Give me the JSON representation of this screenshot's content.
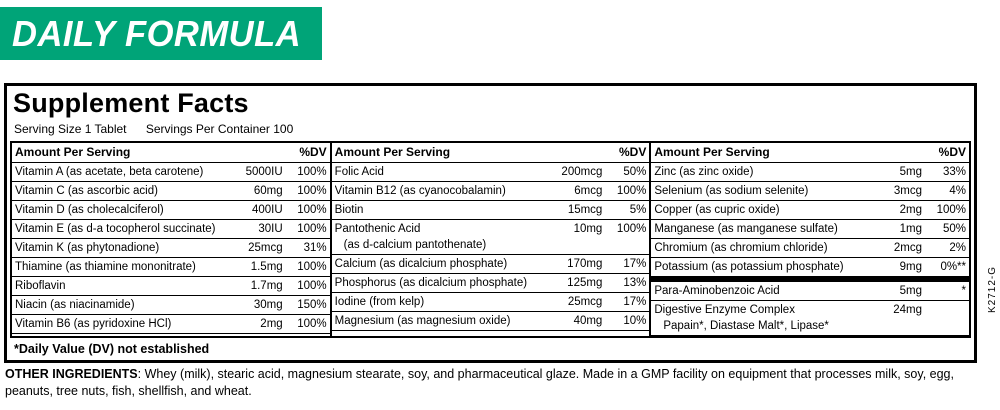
{
  "banner": {
    "title": "DAILY FORMULA",
    "color": "#00a478"
  },
  "panel": {
    "title": "Supplement Facts",
    "serving_size": "Serving Size 1 Tablet",
    "servings_per_container": "Servings Per Container 100",
    "footnote": "*Daily Value (DV) not established",
    "columns": [
      {
        "header_left": "Amount Per Serving",
        "header_right": "%DV",
        "rows": [
          {
            "name": "Vitamin A (as acetate, beta carotene)",
            "amount": "5000IU",
            "dv": "100%"
          },
          {
            "name": "Vitamin C (as ascorbic acid)",
            "amount": "60mg",
            "dv": "100%"
          },
          {
            "name": "Vitamin D (as cholecalciferol)",
            "amount": "400IU",
            "dv": "100%"
          },
          {
            "name": "Vitamin E (as d-a tocopherol succinate)",
            "amount": "30IU",
            "dv": "100%"
          },
          {
            "name": "Vitamin K (as phytonadione)",
            "amount": "25mcg",
            "dv": "31%"
          },
          {
            "name": "Thiamine (as thiamine mononitrate)",
            "amount": "1.5mg",
            "dv": "100%"
          },
          {
            "name": "Riboflavin",
            "amount": "1.7mg",
            "dv": "100%"
          },
          {
            "name": "Niacin (as niacinamide)",
            "amount": "30mg",
            "dv": "150%"
          },
          {
            "name": "Vitamin B6 (as pyridoxine HCl)",
            "amount": "2mg",
            "dv": "100%"
          }
        ]
      },
      {
        "header_left": "Amount Per Serving",
        "header_right": "%DV",
        "rows": [
          {
            "name": "Folic Acid",
            "amount": "200mcg",
            "dv": "50%"
          },
          {
            "name": "Vitamin B12 (as cyanocobalamin)",
            "amount": "6mcg",
            "dv": "100%"
          },
          {
            "name": "Biotin",
            "amount": "15mcg",
            "dv": "5%"
          },
          {
            "name": "Pantothenic Acid",
            "name2": "(as d-calcium pantothenate)",
            "amount": "10mg",
            "dv": "100%"
          },
          {
            "name": "Calcium (as dicalcium phosphate)",
            "amount": "170mg",
            "dv": "17%"
          },
          {
            "name": "Phosphorus (as dicalcium phosphate)",
            "amount": "125mg",
            "dv": "13%"
          },
          {
            "name": "Iodine (from kelp)",
            "amount": "25mcg",
            "dv": "17%"
          },
          {
            "name": "Magnesium (as magnesium oxide)",
            "amount": "40mg",
            "dv": "10%"
          }
        ]
      },
      {
        "header_left": "Amount Per Serving",
        "header_right": "%DV",
        "rows": [
          {
            "name": "Zinc (as zinc oxide)",
            "amount": "5mg",
            "dv": "33%"
          },
          {
            "name": "Selenium (as sodium selenite)",
            "amount": "3mcg",
            "dv": "4%"
          },
          {
            "name": "Copper (as cupric oxide)",
            "amount": "2mg",
            "dv": "100%"
          },
          {
            "name": "Manganese (as manganese sulfate)",
            "amount": "1mg",
            "dv": "50%"
          },
          {
            "name": "Chromium (as chromium chloride)",
            "amount": "2mcg",
            "dv": "2%"
          },
          {
            "name": "Potassium (as potassium phosphate)",
            "amount": "9mg",
            "dv": "0%**"
          },
          {
            "divider": true
          },
          {
            "name": "Para-Aminobenzoic Acid",
            "amount": "5mg",
            "dv": "*"
          },
          {
            "name": "Digestive Enzyme Complex",
            "name2": "Papain*, Diastase Malt*, Lipase*",
            "amount": "24mg",
            "dv": ""
          }
        ]
      }
    ]
  },
  "other": {
    "label": "OTHER INGREDIENTS",
    "text": ": Whey (milk), stearic acid, magnesium stearate, soy, and pharmaceutical glaze. Made in a GMP facility on equipment that processes milk, soy, egg, peanuts, tree nuts, fish, shellfish, and wheat."
  },
  "side_code": "K2712-G"
}
